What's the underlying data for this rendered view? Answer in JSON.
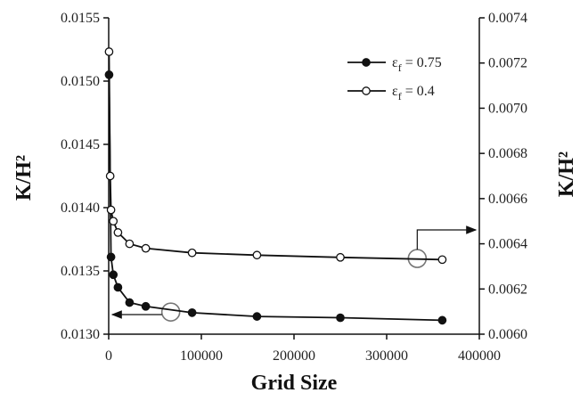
{
  "chart_data": {
    "type": "line",
    "xlabel": "Grid Size",
    "ylabel_left": "K/H²",
    "ylabel_right": "K/H²",
    "xlim": [
      0,
      400000
    ],
    "ylim_left": [
      0.013,
      0.0155
    ],
    "ylim_right": [
      0.006,
      0.0074
    ],
    "x_ticks": [
      0,
      100000,
      200000,
      300000,
      400000
    ],
    "x_tick_labels": [
      "0",
      "100000",
      "200000",
      "300000",
      "400000"
    ],
    "y_left_ticks": [
      0.013,
      0.0135,
      0.014,
      0.0145,
      0.015,
      0.0155
    ],
    "y_left_tick_labels": [
      "0.0130",
      "0.0135",
      "0.0140",
      "0.0145",
      "0.0150",
      "0.0155"
    ],
    "y_right_ticks": [
      0.006,
      0.0062,
      0.0064,
      0.0066,
      0.0068,
      0.007,
      0.0072,
      0.0074
    ],
    "y_right_tick_labels": [
      "0.0060",
      "0.0062",
      "0.0064",
      "0.0066",
      "0.0068",
      "0.0070",
      "0.0072",
      "0.0074"
    ],
    "grid": false,
    "legend_position": "top-right",
    "series": [
      {
        "name": "εf = 0.75",
        "legend_main": "ε",
        "legend_sub": "f",
        "legend_rest": " = 0.75",
        "marker": "filled-circle",
        "axis": "left",
        "color": "#111111",
        "x": [
          400,
          2500,
          5000,
          10000,
          22500,
          40000,
          90000,
          160000,
          250000,
          360000
        ],
        "y": [
          0.01505,
          0.01361,
          0.01347,
          0.01337,
          0.01325,
          0.01322,
          0.01317,
          0.01314,
          0.01313,
          0.01311
        ]
      },
      {
        "name": "εf = 0.4",
        "legend_main": "ε",
        "legend_sub": "f",
        "legend_rest": " = 0.4",
        "marker": "open-circle",
        "axis": "right",
        "color": "#111111",
        "x": [
          400,
          1600,
          2500,
          5000,
          10000,
          22500,
          40000,
          90000,
          160000,
          250000,
          360000
        ],
        "y": [
          0.00725,
          0.0067,
          0.00655,
          0.0065,
          0.00645,
          0.0064,
          0.00638,
          0.00636,
          0.00635,
          0.00634,
          0.00633
        ]
      }
    ]
  }
}
